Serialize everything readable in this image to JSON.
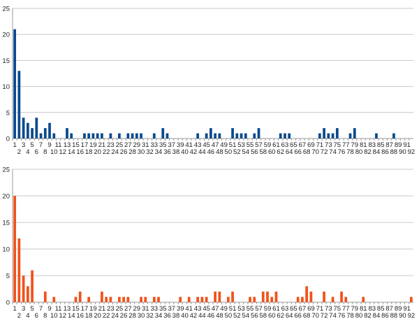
{
  "chart_data": [
    {
      "type": "bar",
      "title": "",
      "xlabel": "",
      "ylabel": "",
      "ylim": [
        0,
        25
      ],
      "yticks": [
        0,
        5,
        10,
        15,
        20,
        25
      ],
      "grid": true,
      "legend": "none",
      "bar_color": "#0b4a8c",
      "categories_range": [
        1,
        92
      ],
      "x": [
        1,
        2,
        3,
        4,
        5,
        6,
        7,
        8,
        9,
        10,
        11,
        12,
        13,
        14,
        15,
        16,
        17,
        18,
        19,
        20,
        21,
        22,
        23,
        24,
        25,
        26,
        27,
        28,
        29,
        30,
        31,
        32,
        33,
        34,
        35,
        36,
        37,
        38,
        39,
        40,
        41,
        42,
        43,
        44,
        45,
        46,
        47,
        48,
        49,
        50,
        51,
        52,
        53,
        54,
        55,
        56,
        57,
        58,
        59,
        60,
        61,
        62,
        63,
        64,
        65,
        66,
        67,
        68,
        69,
        70,
        71,
        72,
        73,
        74,
        75,
        76,
        77,
        78,
        79,
        80,
        81,
        82,
        83,
        84,
        85,
        86,
        87,
        88,
        89,
        90,
        91,
        92
      ],
      "values": [
        21,
        13,
        4,
        3,
        2,
        4,
        1,
        2,
        3,
        1,
        0,
        0,
        2,
        1,
        0,
        0,
        1,
        1,
        1,
        1,
        1,
        0,
        1,
        0,
        1,
        0,
        1,
        1,
        1,
        1,
        0,
        0,
        1,
        0,
        2,
        1,
        0,
        0,
        0,
        0,
        0,
        0,
        1,
        0,
        1,
        2,
        1,
        1,
        0,
        0,
        2,
        1,
        1,
        1,
        0,
        1,
        2,
        0,
        0,
        0,
        0,
        1,
        1,
        1,
        0,
        0,
        0,
        0,
        0,
        0,
        1,
        2,
        1,
        1,
        2,
        0,
        0,
        1,
        2,
        0,
        0,
        0,
        0,
        1,
        0,
        0,
        0,
        1,
        0,
        0,
        0,
        0
      ]
    },
    {
      "type": "bar",
      "title": "",
      "xlabel": "",
      "ylabel": "",
      "ylim": [
        0,
        25
      ],
      "yticks": [
        0,
        5,
        10,
        15,
        20,
        25
      ],
      "grid": true,
      "legend": "none",
      "bar_color": "#f0531b",
      "categories_range": [
        1,
        92
      ],
      "x": [
        1,
        2,
        3,
        4,
        5,
        6,
        7,
        8,
        9,
        10,
        11,
        12,
        13,
        14,
        15,
        16,
        17,
        18,
        19,
        20,
        21,
        22,
        23,
        24,
        25,
        26,
        27,
        28,
        29,
        30,
        31,
        32,
        33,
        34,
        35,
        36,
        37,
        38,
        39,
        40,
        41,
        42,
        43,
        44,
        45,
        46,
        47,
        48,
        49,
        50,
        51,
        52,
        53,
        54,
        55,
        56,
        57,
        58,
        59,
        60,
        61,
        62,
        63,
        64,
        65,
        66,
        67,
        68,
        69,
        70,
        71,
        72,
        73,
        74,
        75,
        76,
        77,
        78,
        79,
        80,
        81,
        82,
        83,
        84,
        85,
        86,
        87,
        88,
        89,
        90,
        91,
        92
      ],
      "values": [
        20,
        12,
        5,
        3,
        6,
        0,
        0,
        2,
        0,
        1,
        0,
        0,
        0,
        0,
        1,
        2,
        0,
        1,
        0,
        0,
        2,
        1,
        1,
        0,
        1,
        1,
        1,
        0,
        0,
        1,
        1,
        0,
        1,
        1,
        0,
        0,
        0,
        0,
        1,
        0,
        1,
        0,
        1,
        1,
        1,
        0,
        2,
        2,
        0,
        1,
        2,
        0,
        0,
        0,
        1,
        1,
        0,
        2,
        2,
        1,
        2,
        0,
        0,
        0,
        0,
        1,
        1,
        3,
        2,
        0,
        0,
        2,
        0,
        1,
        0,
        2,
        1,
        0,
        0,
        0,
        1,
        0,
        0,
        0,
        0,
        0,
        0,
        0,
        0,
        0,
        0,
        1
      ]
    }
  ]
}
